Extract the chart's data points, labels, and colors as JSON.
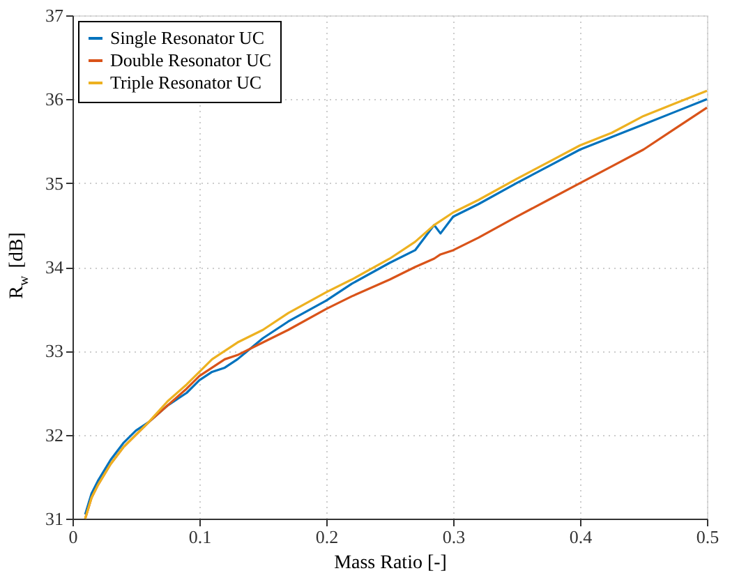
{
  "chart_data": {
    "type": "line",
    "xlabel": "Mass Ratio [-]",
    "ylabel": "R$_{w}$ [dB]",
    "xlim": [
      0,
      0.5
    ],
    "xticks": [
      {
        "value": 0,
        "label": "0"
      },
      0.1,
      0.2,
      0.3,
      0.4,
      0.5
    ],
    "ylim": [
      31,
      37
    ],
    "yticks": [
      31,
      32,
      33,
      34,
      35,
      36,
      37
    ],
    "grid": true,
    "legend": "top left",
    "line_style": "solid",
    "marker": "none",
    "x": [
      0.01,
      0.015,
      0.02,
      0.03,
      0.04,
      0.05,
      0.06,
      0.075,
      0.09,
      0.1,
      0.11,
      0.12,
      0.13,
      0.15,
      0.17,
      0.2,
      0.22,
      0.25,
      0.27,
      0.285,
      0.29,
      0.3,
      0.32,
      0.35,
      0.375,
      0.4,
      0.425,
      0.45,
      0.475,
      0.5
    ],
    "series": [
      {
        "name": "Single Resonator UC",
        "color": "#0072bd",
        "values": [
          31.05,
          31.3,
          31.45,
          31.7,
          31.9,
          32.05,
          32.15,
          32.35,
          32.5,
          32.65,
          32.75,
          32.8,
          32.9,
          33.15,
          33.35,
          33.6,
          33.8,
          34.05,
          34.2,
          34.5,
          34.4,
          34.6,
          34.75,
          35.0,
          35.2,
          35.4,
          35.55,
          35.7,
          35.85,
          36.0
        ]
      },
      {
        "name": "Double Resonator UC",
        "color": "#d95319",
        "values": [
          31.0,
          31.25,
          31.4,
          31.65,
          31.85,
          32.0,
          32.15,
          32.35,
          32.55,
          32.7,
          32.8,
          32.9,
          32.95,
          33.1,
          33.25,
          33.5,
          33.65,
          33.85,
          34.0,
          34.1,
          34.15,
          34.2,
          34.35,
          34.6,
          34.8,
          35.0,
          35.2,
          35.4,
          35.65,
          35.9
        ]
      },
      {
        "name": "Triple Resonator UC",
        "color": "#edb120",
        "values": [
          31.0,
          31.25,
          31.4,
          31.65,
          31.85,
          32.0,
          32.15,
          32.4,
          32.6,
          32.75,
          32.9,
          33.0,
          33.1,
          33.25,
          33.45,
          33.7,
          33.85,
          34.1,
          34.3,
          34.5,
          34.55,
          34.65,
          34.8,
          35.05,
          35.25,
          35.45,
          35.6,
          35.8,
          35.95,
          36.1
        ]
      }
    ]
  }
}
